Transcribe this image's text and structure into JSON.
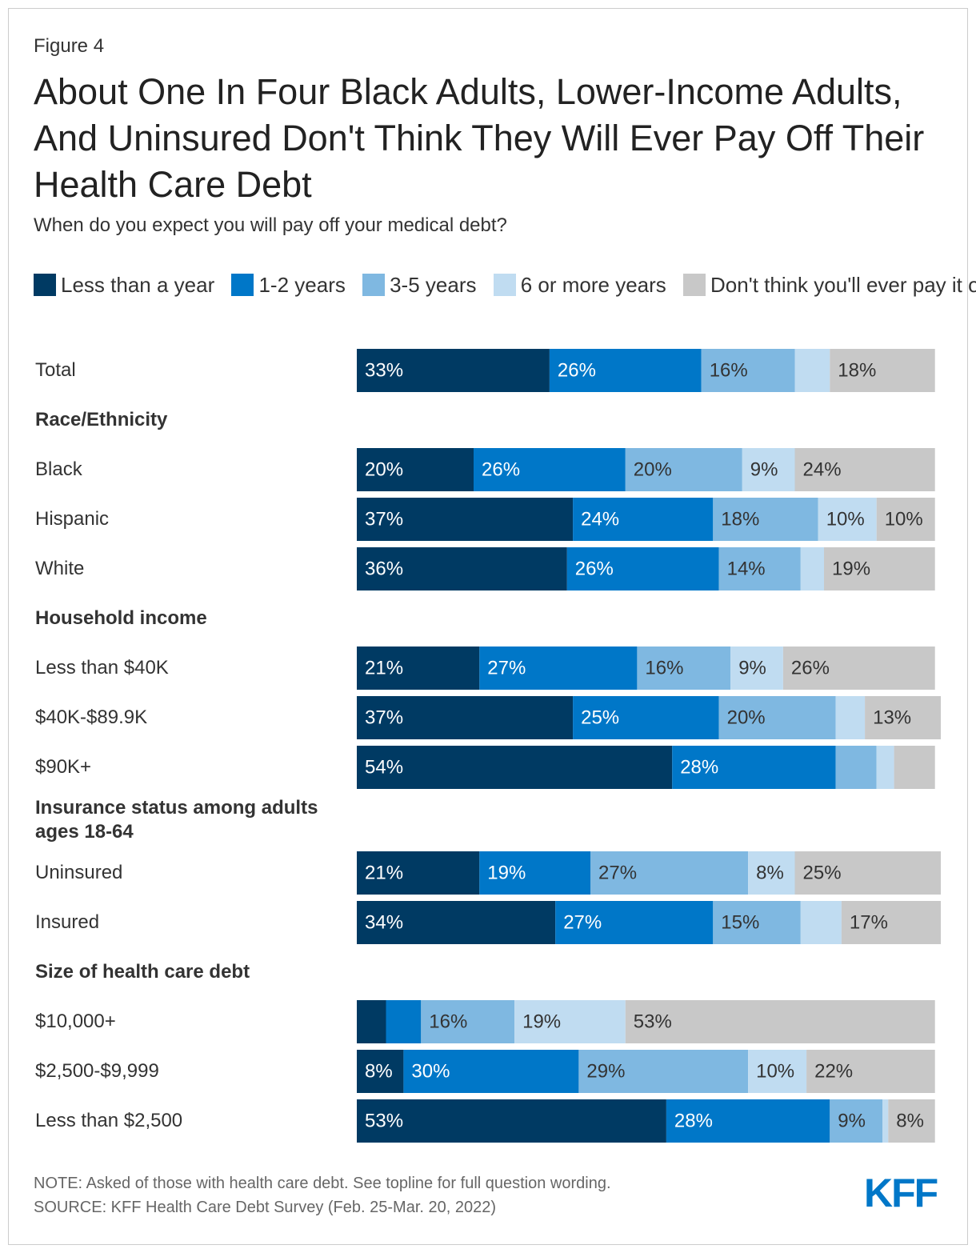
{
  "chart_data": {
    "type": "stacked-bar-horizontal",
    "figure_label": "Figure 4",
    "title": "About One In Four Black Adults, Lower-Income Adults, And Uninsured Don't Think They Will Ever Pay Off Their Health Care Debt",
    "subtitle": "When do you expect you will pay off your medical debt?",
    "categories": [
      "Total",
      "Race/Ethnicity",
      "Black",
      "Hispanic",
      "White",
      "Household income",
      "Less than $40K",
      "$40K-$89.9K",
      "$90K+",
      "Insurance status among adults ages 18-64",
      "Uninsured",
      "Insured",
      "Size of health care debt",
      "$10,000+",
      "$2,500-$9,999",
      "Less than $2,500"
    ],
    "xlim": [
      0,
      100
    ],
    "series": [
      {
        "name": "Less than a year",
        "color": "#003a63",
        "values": [
          33,
          null,
          20,
          37,
          36,
          null,
          21,
          37,
          54,
          null,
          21,
          34,
          null,
          5,
          8,
          53
        ],
        "value_labels": [
          "33%",
          null,
          "20%",
          "37%",
          "36%",
          null,
          "21%",
          "37%",
          "54%",
          null,
          "21%",
          "34%",
          null,
          null,
          "8%",
          "53%"
        ]
      },
      {
        "name": "1-2 years",
        "color": "#0077c8",
        "values": [
          26,
          null,
          26,
          24,
          26,
          null,
          27,
          25,
          28,
          null,
          19,
          27,
          null,
          6,
          30,
          28
        ],
        "value_labels": [
          "26%",
          null,
          "26%",
          "24%",
          "26%",
          null,
          "27%",
          "25%",
          "28%",
          null,
          "19%",
          "27%",
          null,
          null,
          "30%",
          "28%"
        ]
      },
      {
        "name": "3-5 years",
        "color": "#7fb8e1",
        "values": [
          16,
          null,
          20,
          18,
          14,
          null,
          16,
          20,
          7,
          null,
          27,
          15,
          null,
          16,
          29,
          9
        ],
        "value_labels": [
          "16%",
          null,
          "20%",
          "18%",
          "14%",
          null,
          "16%",
          "20%",
          null,
          null,
          "27%",
          "15%",
          null,
          "16%",
          "29%",
          "9%"
        ]
      },
      {
        "name": "6 or more years",
        "color": "#c0dcf1",
        "values": [
          6,
          null,
          9,
          10,
          4,
          null,
          9,
          5,
          3,
          null,
          8,
          7,
          null,
          19,
          10,
          1
        ],
        "value_labels": [
          null,
          null,
          "9%",
          "10%",
          null,
          null,
          "9%",
          null,
          null,
          null,
          "8%",
          null,
          null,
          "19%",
          "10%",
          null
        ]
      },
      {
        "name": "Don't think you'll ever pay it off",
        "color": "#c8c8c8",
        "values": [
          18,
          null,
          24,
          10,
          19,
          null,
          26,
          13,
          7,
          null,
          25,
          17,
          null,
          53,
          22,
          8
        ],
        "value_labels": [
          "18%",
          null,
          "24%",
          "10%",
          "19%",
          null,
          "26%",
          "13%",
          null,
          null,
          "25%",
          "17%",
          null,
          "53%",
          "22%",
          "8%"
        ]
      }
    ],
    "note": "NOTE: Asked of those with health care debt. See topline for full question wording.",
    "source": "SOURCE: KFF Health Care Debt Survey (Feb. 25-Mar. 20, 2022)",
    "logo": "KFF"
  }
}
